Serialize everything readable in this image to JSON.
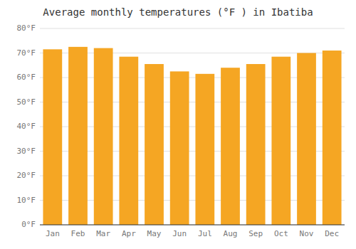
{
  "chart_data": {
    "type": "bar",
    "title": "Average monthly temperatures (°F ) in Ibatiba",
    "categories": [
      "Jan",
      "Feb",
      "Mar",
      "Apr",
      "May",
      "Jun",
      "Jul",
      "Aug",
      "Sep",
      "Oct",
      "Nov",
      "Dec"
    ],
    "values": [
      71.5,
      72.5,
      72.0,
      68.5,
      65.5,
      62.5,
      61.5,
      64.0,
      65.5,
      68.5,
      70.0,
      71.0
    ],
    "color": "#F5A623",
    "ylim": [
      0,
      80
    ],
    "yticks": [
      {
        "value": 0,
        "label": "0°F"
      },
      {
        "value": 10,
        "label": "10°F"
      },
      {
        "value": 20,
        "label": "20°F"
      },
      {
        "value": 30,
        "label": "30°F"
      },
      {
        "value": 40,
        "label": "40°F"
      },
      {
        "value": 50,
        "label": "50°F"
      },
      {
        "value": 60,
        "label": "60°F"
      },
      {
        "value": 70,
        "label": "70°F"
      },
      {
        "value": 80,
        "label": "80°F"
      }
    ],
    "grid": true
  }
}
